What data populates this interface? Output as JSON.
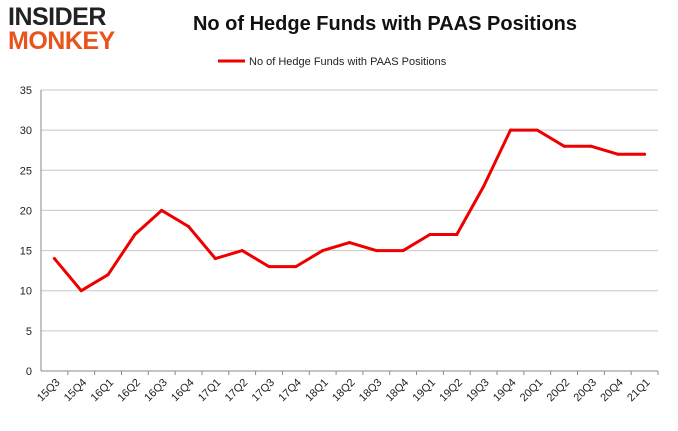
{
  "logo": {
    "line1": "INSIDER",
    "line2": "MONKEY"
  },
  "chart_data": {
    "type": "line",
    "title": "No of Hedge Funds with PAAS Positions",
    "legend_position": "top-center",
    "grid": true,
    "ylim": [
      0,
      35
    ],
    "yticks": [
      0,
      5,
      10,
      15,
      20,
      25,
      30,
      35
    ],
    "categories": [
      "15Q3",
      "15Q4",
      "16Q1",
      "16Q2",
      "16Q3",
      "16Q4",
      "17Q1",
      "17Q2",
      "17Q3",
      "17Q4",
      "18Q1",
      "18Q2",
      "18Q3",
      "18Q4",
      "19Q1",
      "19Q2",
      "19Q3",
      "19Q4",
      "20Q1",
      "20Q2",
      "20Q3",
      "20Q4",
      "21Q1"
    ],
    "series": [
      {
        "name": "No of Hedge Funds with PAAS Positions",
        "color": "#ee0000",
        "values": [
          14,
          10,
          12,
          17,
          20,
          18,
          14,
          15,
          13,
          13,
          15,
          16,
          15,
          15,
          17,
          17,
          23,
          30,
          30,
          28,
          28,
          27,
          27
        ]
      }
    ]
  }
}
